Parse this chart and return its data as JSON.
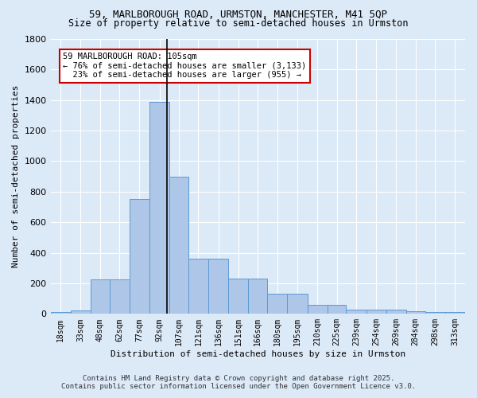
{
  "title_line1": "59, MARLBOROUGH ROAD, URMSTON, MANCHESTER, M41 5QP",
  "title_line2": "Size of property relative to semi-detached houses in Urmston",
  "xlabel": "Distribution of semi-detached houses by size in Urmston",
  "ylabel": "Number of semi-detached properties",
  "footer_line1": "Contains HM Land Registry data © Crown copyright and database right 2025.",
  "footer_line2": "Contains public sector information licensed under the Open Government Licence v3.0.",
  "annotation_title": "59 MARLBOROUGH ROAD: 105sqm",
  "annotation_line1": "← 76% of semi-detached houses are smaller (3,133)",
  "annotation_line2": "23% of semi-detached houses are larger (955) →",
  "subject_size": 105,
  "bar_labels": [
    "18sqm",
    "33sqm",
    "48sqm",
    "62sqm",
    "77sqm",
    "92sqm",
    "107sqm",
    "121sqm",
    "136sqm",
    "151sqm",
    "166sqm",
    "180sqm",
    "195sqm",
    "210sqm",
    "225sqm",
    "239sqm",
    "254sqm",
    "269sqm",
    "284sqm",
    "298sqm",
    "313sqm"
  ],
  "bar_edges": [
    18,
    33,
    48,
    62,
    77,
    92,
    107,
    121,
    136,
    151,
    166,
    180,
    195,
    210,
    225,
    239,
    254,
    269,
    284,
    298,
    313
  ],
  "bar_values": [
    10,
    20,
    225,
    225,
    750,
    1390,
    900,
    360,
    360,
    230,
    230,
    130,
    130,
    60,
    60,
    30,
    30,
    30,
    15,
    10,
    10
  ],
  "highlight_bar_index": 6,
  "bar_color": "#aec6e8",
  "bar_edge_color": "#5b9bd5",
  "highlight_bar_color": "#aec6e8",
  "highlight_line_color": "#000000",
  "annotation_box_color": "#ffffff",
  "annotation_box_edge": "#cc0000",
  "bg_color": "#dce9f7",
  "plot_bg_color": "#dce9f7",
  "grid_color": "#ffffff",
  "ylim": [
    0,
    1800
  ],
  "yticks": [
    0,
    200,
    400,
    600,
    800,
    1000,
    1200,
    1400,
    1600,
    1800
  ]
}
